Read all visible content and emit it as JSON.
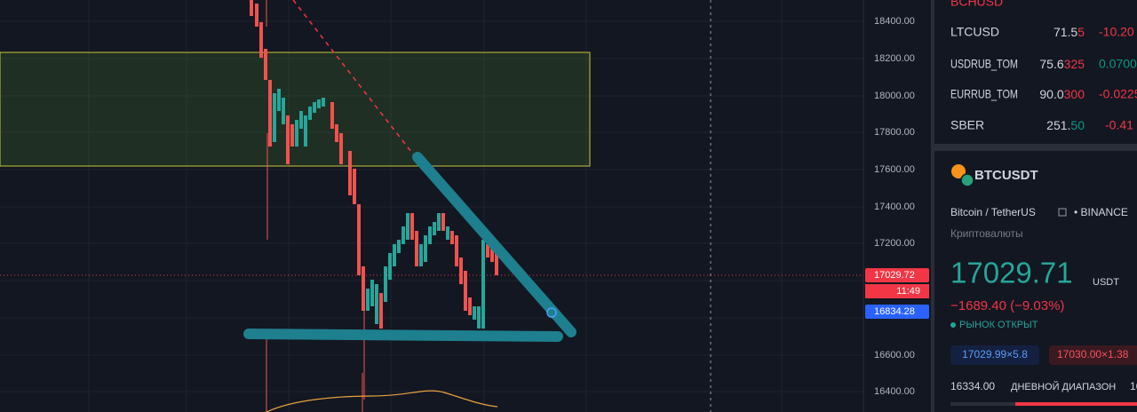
{
  "price_axis": {
    "ticks": [
      "18400.00",
      "18200.00",
      "18000.00",
      "17800.00",
      "17600.00",
      "17400.00",
      "17200.00",
      "16600.00",
      "16400.00"
    ],
    "last_price": "17029.72",
    "countdown": "11:49",
    "crosshair_price": "16834.28"
  },
  "watchlist": {
    "rows": [
      {
        "symbol": "BCHUSD"
      },
      {
        "symbol": "LTCUSD",
        "price_main": "71.5",
        "price_tail": "5",
        "change": "-10.20"
      },
      {
        "symbol": "USDRUB_TOM",
        "price_main": "75.6",
        "price_tail": "325",
        "change": "0.0700"
      },
      {
        "symbol": "EURRUB_TOM",
        "price_main": "90.0",
        "price_tail": "300",
        "change": "-0.0225"
      },
      {
        "symbol": "SBER",
        "price_main": "251.",
        "price_tail": "50",
        "change": "-0.41"
      }
    ]
  },
  "details": {
    "symbol": "BTCUSDT",
    "description": "Bitcoin / TetherUS",
    "exchange": "• BINANCE",
    "category": "Криптовалюты",
    "price": "17029.71",
    "currency": "USDT",
    "change": "−1689.40 (−9.03%)",
    "status": "РЫНОК ОТКРЫТ",
    "bid": "17029.99×5.8",
    "ask": "17030.00×1.38",
    "day_low": "16334.00",
    "day_range_label": "ДНЕВНОЙ ДИАПАЗОН",
    "day_high": "16"
  }
}
